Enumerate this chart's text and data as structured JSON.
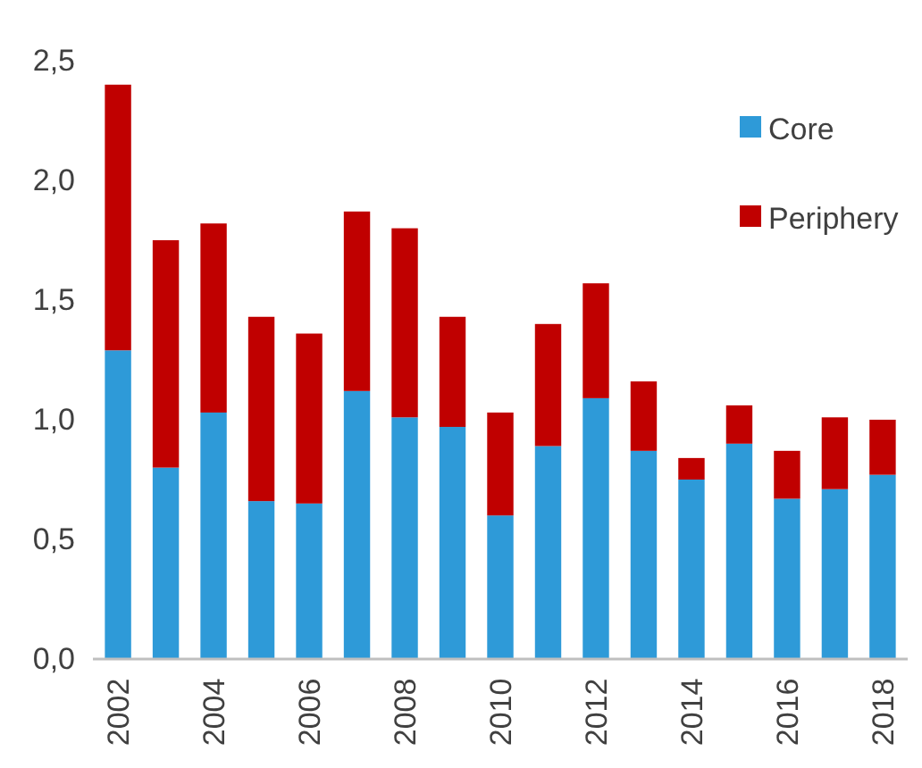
{
  "chart_data": {
    "type": "bar",
    "stacked": true,
    "categories": [
      "2002",
      null,
      "2004",
      null,
      "2006",
      null,
      "2008",
      null,
      "2010",
      null,
      "2012",
      null,
      "2014",
      null,
      "2016",
      null,
      "2018"
    ],
    "series": [
      {
        "name": "Core",
        "color": "#2e9ad8",
        "values": [
          1.29,
          0.8,
          1.03,
          0.66,
          0.65,
          1.12,
          1.01,
          0.97,
          0.6,
          0.89,
          1.09,
          0.87,
          0.75,
          0.9,
          0.67,
          0.71,
          0.77
        ]
      },
      {
        "name": "Periphery",
        "color": "#c00000",
        "values": [
          1.11,
          0.95,
          0.79,
          0.77,
          0.71,
          0.75,
          0.79,
          0.46,
          0.43,
          0.51,
          0.48,
          0.29,
          0.09,
          0.16,
          0.2,
          0.3,
          0.23
        ]
      }
    ],
    "ylim": [
      0,
      2.5
    ],
    "yticks": [
      {
        "value": 0,
        "label": "0,0"
      },
      {
        "value": 0.5,
        "label": "0,5"
      },
      {
        "value": 1,
        "label": "1,0"
      },
      {
        "value": 1.5,
        "label": "1,5"
      },
      {
        "value": 2,
        "label": "2,0"
      },
      {
        "value": 2.5,
        "label": "2,5"
      }
    ],
    "legend": "top right",
    "grid": false
  }
}
